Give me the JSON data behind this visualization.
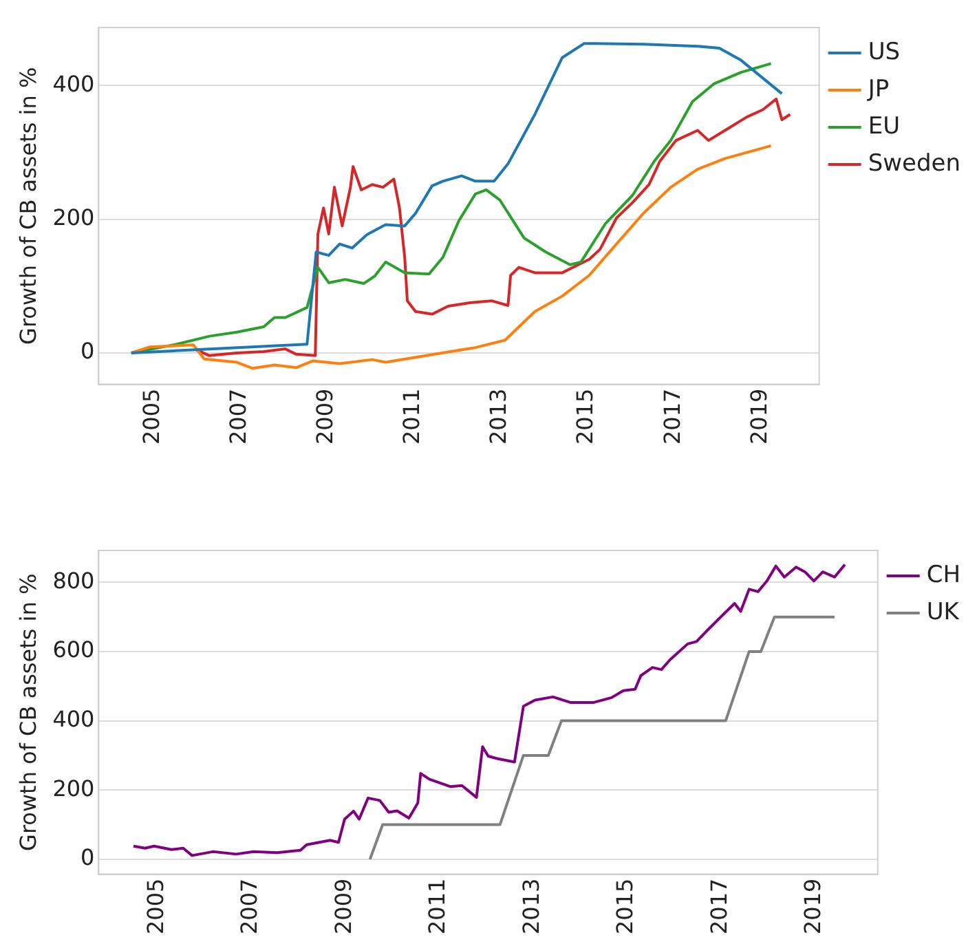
{
  "chart_data": [
    {
      "type": "line",
      "ylabel": "Growth of CB assets in %",
      "xlim": [
        2003.75,
        2020.35
      ],
      "ylim": [
        -47,
        487
      ],
      "xticks": [
        2005,
        2007,
        2009,
        2011,
        2013,
        2015,
        2017,
        2019
      ],
      "yticks": [
        0,
        200,
        400
      ],
      "grid": "y",
      "legend": "top right",
      "series": [
        {
          "name": "US",
          "color": "#1f77b4",
          "x": [
            2004.5,
            2008.55,
            2008.76,
            2009.05,
            2009.3,
            2009.59,
            2009.93,
            2010.36,
            2010.8,
            2011.05,
            2011.43,
            2011.68,
            2012.11,
            2012.43,
            2012.86,
            2013.18,
            2013.8,
            2014.43,
            2014.93,
            2015.18,
            2016.3,
            2017.55,
            2018.05,
            2018.55,
            2019.49
          ],
          "values": [
            0,
            13,
            151,
            146,
            163,
            157,
            177,
            192,
            190,
            209,
            250,
            257,
            265,
            257,
            257,
            283,
            357,
            442,
            463,
            463,
            462,
            459,
            456,
            438,
            388
          ]
        },
        {
          "name": "JP",
          "color": "#ff7f0e",
          "x": [
            2004.5,
            2004.93,
            2005.93,
            2006.18,
            2006.93,
            2007.3,
            2007.8,
            2008.3,
            2008.68,
            2009.3,
            2010.05,
            2010.36,
            2011.3,
            2012.05,
            2012.43,
            2013.11,
            2013.8,
            2014.43,
            2015.05,
            2015.68,
            2016.3,
            2016.93,
            2017.55,
            2018.18,
            2019.24
          ],
          "values": [
            0,
            9,
            12,
            -9,
            -14,
            -23,
            -18,
            -22,
            -12,
            -16,
            -10,
            -14,
            -4,
            4,
            8,
            19,
            62,
            85,
            116,
            163,
            209,
            248,
            275,
            291,
            310
          ]
        },
        {
          "name": "EU",
          "color": "#2ca02c",
          "x": [
            2004.5,
            2005.55,
            2006.3,
            2006.93,
            2007.55,
            2007.8,
            2008.05,
            2008.55,
            2008.8,
            2009.05,
            2009.43,
            2009.86,
            2010.11,
            2010.36,
            2010.8,
            2011.36,
            2011.68,
            2012.05,
            2012.43,
            2012.68,
            2012.99,
            2013.55,
            2014.05,
            2014.61,
            2014.86,
            2015.43,
            2016.05,
            2016.55,
            2016.93,
            2017.43,
            2017.93,
            2018.55,
            2019.24
          ],
          "values": [
            0,
            13,
            25,
            31,
            39,
            53,
            53,
            68,
            128,
            105,
            110,
            104,
            115,
            136,
            120,
            118,
            143,
            198,
            238,
            244,
            229,
            172,
            151,
            132,
            136,
            194,
            236,
            287,
            318,
            376,
            403,
            420,
            433
          ]
        },
        {
          "name": "Sweden",
          "color": "#d62728",
          "x": [
            2005.99,
            2006.3,
            2006.93,
            2007.55,
            2008.05,
            2008.3,
            2008.74,
            2008.8,
            2008.93,
            2009.05,
            2009.18,
            2009.36,
            2009.55,
            2009.61,
            2009.8,
            2010.05,
            2010.3,
            2010.55,
            2010.68,
            2010.8,
            2010.86,
            2011.05,
            2011.43,
            2011.8,
            2012.3,
            2012.8,
            2013.18,
            2013.24,
            2013.43,
            2013.8,
            2014.43,
            2014.8,
            2015.05,
            2015.3,
            2015.68,
            2016.05,
            2016.43,
            2016.68,
            2017.05,
            2017.55,
            2017.8,
            2018.18,
            2018.68,
            2019.05,
            2019.36,
            2019.49,
            2019.68
          ],
          "values": [
            5,
            -4,
            0,
            2,
            6,
            -2,
            -4,
            178,
            217,
            178,
            248,
            190,
            248,
            279,
            244,
            252,
            248,
            260,
            217,
            143,
            78,
            62,
            58,
            70,
            75,
            78,
            71,
            116,
            128,
            120,
            120,
            132,
            140,
            155,
            202,
            225,
            252,
            287,
            318,
            333,
            318,
            333,
            353,
            364,
            380,
            349,
            357
          ]
        }
      ]
    },
    {
      "type": "line",
      "ylabel": "Growth of CB assets in %",
      "xlim": [
        2003.75,
        2020.35
      ],
      "ylim": [
        -43,
        892
      ],
      "xticks": [
        2005,
        2007,
        2009,
        2011,
        2013,
        2015,
        2017,
        2019
      ],
      "yticks": [
        0,
        200,
        400,
        600,
        800
      ],
      "grid": "y",
      "legend": "top right",
      "series": [
        {
          "name": "CH",
          "color": "#800080",
          "x": [
            2004.49,
            2004.74,
            2004.93,
            2005.3,
            2005.55,
            2005.74,
            2006.18,
            2006.68,
            2007.05,
            2007.55,
            2008.05,
            2008.18,
            2008.68,
            2008.86,
            2008.99,
            2009.18,
            2009.3,
            2009.49,
            2009.74,
            2009.93,
            2010.11,
            2010.36,
            2010.55,
            2010.61,
            2010.8,
            2011.24,
            2011.49,
            2011.8,
            2011.93,
            2012.05,
            2012.24,
            2012.61,
            2012.8,
            2013.05,
            2013.43,
            2013.8,
            2014.3,
            2014.68,
            2014.93,
            2015.18,
            2015.3,
            2015.55,
            2015.74,
            2015.93,
            2016.3,
            2016.49,
            2016.68,
            2017.05,
            2017.3,
            2017.43,
            2017.61,
            2017.8,
            2017.99,
            2018.18,
            2018.36,
            2018.61,
            2018.8,
            2018.99,
            2019.18,
            2019.43,
            2019.65
          ],
          "values": [
            38,
            32,
            38,
            28,
            32,
            11,
            22,
            15,
            22,
            19,
            26,
            42,
            55,
            49,
            116,
            139,
            116,
            177,
            170,
            136,
            140,
            119,
            163,
            248,
            231,
            210,
            213,
            179,
            325,
            298,
            291,
            281,
            442,
            460,
            469,
            453,
            453,
            467,
            487,
            491,
            530,
            554,
            548,
            577,
            622,
            629,
            656,
            706,
            739,
            716,
            780,
            773,
            804,
            847,
            815,
            844,
            830,
            804,
            830,
            815,
            851
          ]
        },
        {
          "name": "UK",
          "color": "#808080",
          "x": [
            2009.53,
            2009.8,
            2012.3,
            2012.8,
            2013.33,
            2013.61,
            2017.11,
            2017.61,
            2017.86,
            2018.15,
            2019.43
          ],
          "values": [
            0,
            100,
            100,
            300,
            300,
            400,
            400,
            600,
            600,
            700,
            700
          ]
        }
      ]
    }
  ]
}
